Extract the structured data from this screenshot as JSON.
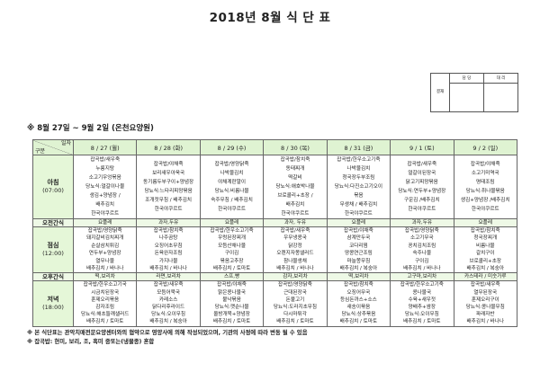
{
  "title": "2018년 8월 식 단 표",
  "approval": {
    "label": "결재",
    "cols": [
      "담 당",
      "대 리"
    ]
  },
  "subtitle": "※ 8월 27일 ~ 9월 2일 (온천요양원)",
  "table": {
    "corner_top": "일자",
    "corner_bottom": "구분",
    "dates": [
      "8 / 27 (월)",
      "8 / 28 (화)",
      "8 / 29 (수)",
      "8 / 30 (목)",
      "8 / 31 (금)",
      "9 / 1 (토)",
      "9 / 2 (일)"
    ],
    "rows": [
      {
        "label": "아침",
        "time": "(07:00)",
        "kind": "bf",
        "cells": [
          [
            "잡곡밥/새우죽",
            "누룽지탕",
            "소고기우엉볶음",
            "당뇨식:얼갈이나물",
            "생김+양념장 /",
            "배추김치",
            "한국야쿠르트"
          ],
          [
            "잡곡밥/야채죽",
            "보리새우아욱국",
            "동기름두부구이+양념장",
            "당뇨식:느타리피망볶음",
            "조개젓무침 / 배추김치",
            "한국야쿠르트"
          ],
          [
            "잡곡밥/영양닭죽",
            "나박물김치",
            "야채계란말이",
            "당뇨식:비름나물",
            "숙주무침 / 배추김치",
            "한국야쿠르트"
          ],
          [
            "잡곡밥/참치죽",
            "동태찌개",
            "떡갈비",
            "당뇨식:애호박나물",
            "브로콜리+초장 /",
            "배추김치",
            "한국야쿠르트"
          ],
          [
            "잡곡밥/한우소고기죽",
            "나박물김치",
            "청국장두부조림",
            "당뇨식:다진소고기오이",
            "볶음",
            "무생채 / 배추김치",
            "한국야쿠르트"
          ],
          [
            "잡곡밥/새우죽",
            "얼갈이된장국",
            "닭고기피망볶음",
            "당뇨식:연두부+양념장",
            "구운김 /배추김치",
            "한국야쿠르트"
          ],
          [
            "잡곡밥/야채죽",
            "소고기미역국",
            "명태조림",
            "당뇨식:취나물볶음",
            "생김+양념장 /배추김치",
            "한국야쿠르트"
          ]
        ]
      },
      {
        "label": "오전간식",
        "kind": "snack",
        "cells": [
          [
            "요플레"
          ],
          [
            "과자,두유"
          ],
          [
            "요플레"
          ],
          [
            "과자, 두유"
          ],
          [
            "요플레"
          ],
          [
            "과자,두유"
          ],
          [
            "요플레"
          ]
        ]
      },
      {
        "label": "점심",
        "time": "(12:00)",
        "kind": "lu",
        "cells": [
          [
            "잡곡밥/영양닭죽",
            "돼지갈비김치찌개",
            "순살삼치튀김",
            "연두부+양념장",
            "열무나물",
            "배추김치 / 바나나"
          ],
          [
            "잡곡밥/참치죽",
            "나주곰탕",
            "오징어초무침",
            "돈육완자조림",
            "가지나물",
            "배추김치 / 바나나"
          ],
          [
            "잡곡밥/한우소고기죽",
            "우렁된장찌개",
            "모듬산채나물",
            "구이김",
            "볶음고추장",
            "배추김치 / 토마토"
          ],
          [
            "잡곡밥/새우죽",
            "우무냉콩국",
            "닭강정",
            "오렌지자몽샐러드",
            "참나물생채",
            "배추김치 / 바나나"
          ],
          [
            "잡곡밥/야채죽",
            "삼계만두국",
            "코다리찜",
            "땅콩연근조림",
            "마늘쫑무침",
            "배추김치 / 복숭아"
          ],
          [
            "잡곡밥/영양닭죽",
            "소고기무국",
            "꽁치김치조림",
            "숙주나물",
            "구이김",
            "배추김치 / 바나나"
          ],
          [
            "잡곡밥/참치죽",
            "청국장찌개",
            "비름나물",
            "갈치구이",
            "브로콜리+초장",
            "배추김치 / 복숭아"
          ]
        ]
      },
      {
        "label": "오후간식",
        "kind": "snack",
        "cells": [
          [
            "떡,보리차"
          ],
          [
            "라면,보리차"
          ],
          [
            "스프,빵"
          ],
          [
            "감자,보리차"
          ],
          [
            "떡,보리차"
          ],
          [
            "고구마,보리차"
          ],
          [
            "카스테라 / 미숫가루"
          ]
        ]
      },
      {
        "label": "저녁",
        "time": "(18:00)",
        "kind": "di",
        "cells": [
          [
            "잡곡밥/한우소고기국",
            "시금치된장국",
            "훈제오리볶음",
            "감자조림",
            "당뇨식:해초들깨샐러드",
            "배추김치 / 토마토"
          ],
          [
            "잡곡밥/새우죽",
            "모듬어묵국",
            "카레소스",
            "닭다리후라이드",
            "당뇨식:오이무침",
            "배추김치 / 복숭아"
          ],
          [
            "잡곡밥/야채죽",
            "맑은콩나물국",
            "불낙볶음",
            "당뇨식:깻순나물",
            "올방개묵+양념장",
            "배추김치 / 토마토"
          ],
          [
            "잡곡밥/영양닭죽",
            "근대된장국",
            "돈불고기",
            "당뇨식:도라지초무침",
            "다시마튀각",
            "배추김치 / 토마토"
          ],
          [
            "잡곡밥/참치죽",
            "오징어무국",
            "등심돈까스+소스",
            "새송이볶음",
            "당뇨식:상추볶음",
            "배추김치 / 토마토"
          ],
          [
            "잡곡밥/한우소고기죽",
            "콩나물국",
            "수육+새우젓",
            "양배추+쌈장",
            "당뇨식:오이무침",
            "배추김치 / 토마토"
          ],
          [
            "잡곡밥/새우죽",
            "열무된장국",
            "훈제오리구이",
            "당뇨식:콩나물무침",
            "파래자반",
            "배추김치 / 바나나"
          ]
        ]
      }
    ]
  },
  "notes": [
    "※ 본 식단표는 관악치매전문요양센터와의 협약으로 영양사에 의해 작성되었으며, 기관의 사정에 따라 변동 될 수 있음",
    "※ 잡곡밥: 현미, 보리, 조, 흑미 중또는(냉물종) 혼합"
  ],
  "colors": {
    "header_bg": "#dff3d2",
    "label_bg": "#e5f7d8",
    "snack_bg": "#eef9e6"
  }
}
